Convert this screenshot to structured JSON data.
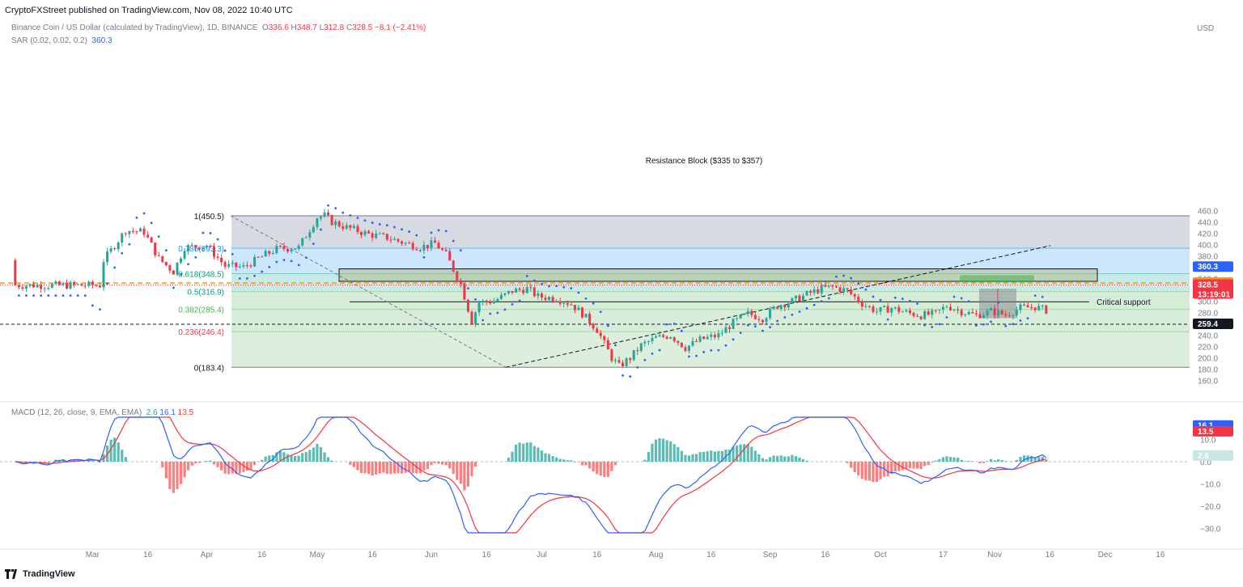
{
  "header": {
    "publisher_line": "CryptoFXStreet published on TradingView.com, Nov 08, 2022 10:40 UTC"
  },
  "legend": {
    "symbol": "Binance Coin / US Dollar (calculated by TradingView), 1D, BINANCE",
    "open_label": "O",
    "open": "336.6",
    "high_label": "H",
    "high": "348.7",
    "low_label": "L",
    "low": "312.8",
    "close_label": "C",
    "close": "328.5",
    "change": "−8.1 (−2.41%)",
    "sar_label": "SAR (0.02, 0.02, 0.2)",
    "sar_value": "360.3",
    "macd_label": "MACD (12, 26, close, 9, EMA, EMA)",
    "macd_hist": "2.6",
    "macd_line": "16.1",
    "macd_signal": "13.5"
  },
  "axis": {
    "currency": "USD"
  },
  "footer": {
    "brand": "TradingView"
  },
  "colors": {
    "up": "#26a69a",
    "down": "#f23645",
    "sar": "#2962ff",
    "macd": "#2962ff",
    "signal": "#f23645"
  },
  "chart_data": [
    {
      "type": "candlestick",
      "title": "Binance Coin / US Dollar (calculated by TradingView), 1D, BINANCE",
      "ylim": [
        150,
        470
      ],
      "y_ticks": [
        160,
        180,
        200,
        220,
        240,
        260,
        280,
        300,
        320,
        340,
        360,
        380,
        400,
        420,
        440,
        460
      ],
      "x_ticks": [
        "Mar",
        "16",
        "Apr",
        "16",
        "May",
        "16",
        "Jun",
        "16",
        "Jul",
        "16",
        "Aug",
        "16",
        "Sep",
        "16",
        "Oct",
        "17",
        "Nov",
        "16",
        "Dec",
        "16"
      ],
      "x_tick_days": [
        28,
        43,
        59,
        74,
        89,
        104,
        120,
        135,
        150,
        165,
        181,
        196,
        212,
        227,
        242,
        259,
        273,
        288,
        303,
        318
      ],
      "key_anchors": [
        {
          "date": "2022-04-01",
          "price": 450.5
        },
        {
          "date": "2022-06-18",
          "price": 183.4
        },
        {
          "date": "2022-08-10",
          "price": 330
        },
        {
          "date": "2022-10-24",
          "price": 270
        },
        {
          "date": "2022-11-05",
          "price": 357
        },
        {
          "date": "2022-11-08",
          "price": 328.5
        }
      ],
      "fib_levels": [
        {
          "label": "1(450.5)",
          "value": 450.5
        },
        {
          "label": "0.786(393.3)",
          "value": 393.3
        },
        {
          "label": "0.618(348.5)",
          "value": 348.5
        },
        {
          "label": "0.5(316.9)",
          "value": 316.9
        },
        {
          "label": "0.382(285.4)",
          "value": 285.4
        },
        {
          "label": "0.236(246.4)",
          "value": 246.4
        },
        {
          "label": "0(183.4)",
          "value": 183.4
        }
      ],
      "annotations": [
        {
          "text": "Resistance Block ($335 to $357)",
          "low": 335,
          "high": 357
        },
        {
          "text": "Critical support",
          "value": 299
        }
      ],
      "horizontal_lines": [
        {
          "value": 332.0,
          "style": "dashed orange"
        },
        {
          "value": 259.4,
          "style": "dashed black"
        }
      ],
      "price_tags": [
        {
          "value": 360.3,
          "text": "360.3",
          "color": "#2962ff"
        },
        {
          "value": 332.0,
          "text": "332.0",
          "color": "#ff9800"
        },
        {
          "value": 328.5,
          "text": "328.5",
          "sub": "13:19:01",
          "color": "#f23645"
        },
        {
          "value": 259.4,
          "text": "259.4",
          "color": "#131722"
        }
      ]
    },
    {
      "type": "line",
      "title": "MACD (12, 26, close, 9, EMA, EMA)",
      "ylim": [
        -40,
        22
      ],
      "y_ticks": [
        10.0,
        0.0,
        -10.0,
        -20.0,
        -30.0
      ],
      "y_tick_labels": [
        "10.0",
        "0.0",
        "−10.0",
        "−20.0",
        "−30.0"
      ],
      "series": [
        {
          "name": "MACD",
          "last": 16.1
        },
        {
          "name": "Signal",
          "last": 13.5
        },
        {
          "name": "Histogram",
          "last": 2.6
        }
      ],
      "price_tags": [
        {
          "value": 16.1,
          "text": "16.1",
          "color": "#2962ff"
        },
        {
          "value": 13.5,
          "text": "13.5",
          "color": "#f23645"
        },
        {
          "value": 2.6,
          "text": "2.6",
          "color": "#c8e6e2"
        }
      ]
    }
  ]
}
